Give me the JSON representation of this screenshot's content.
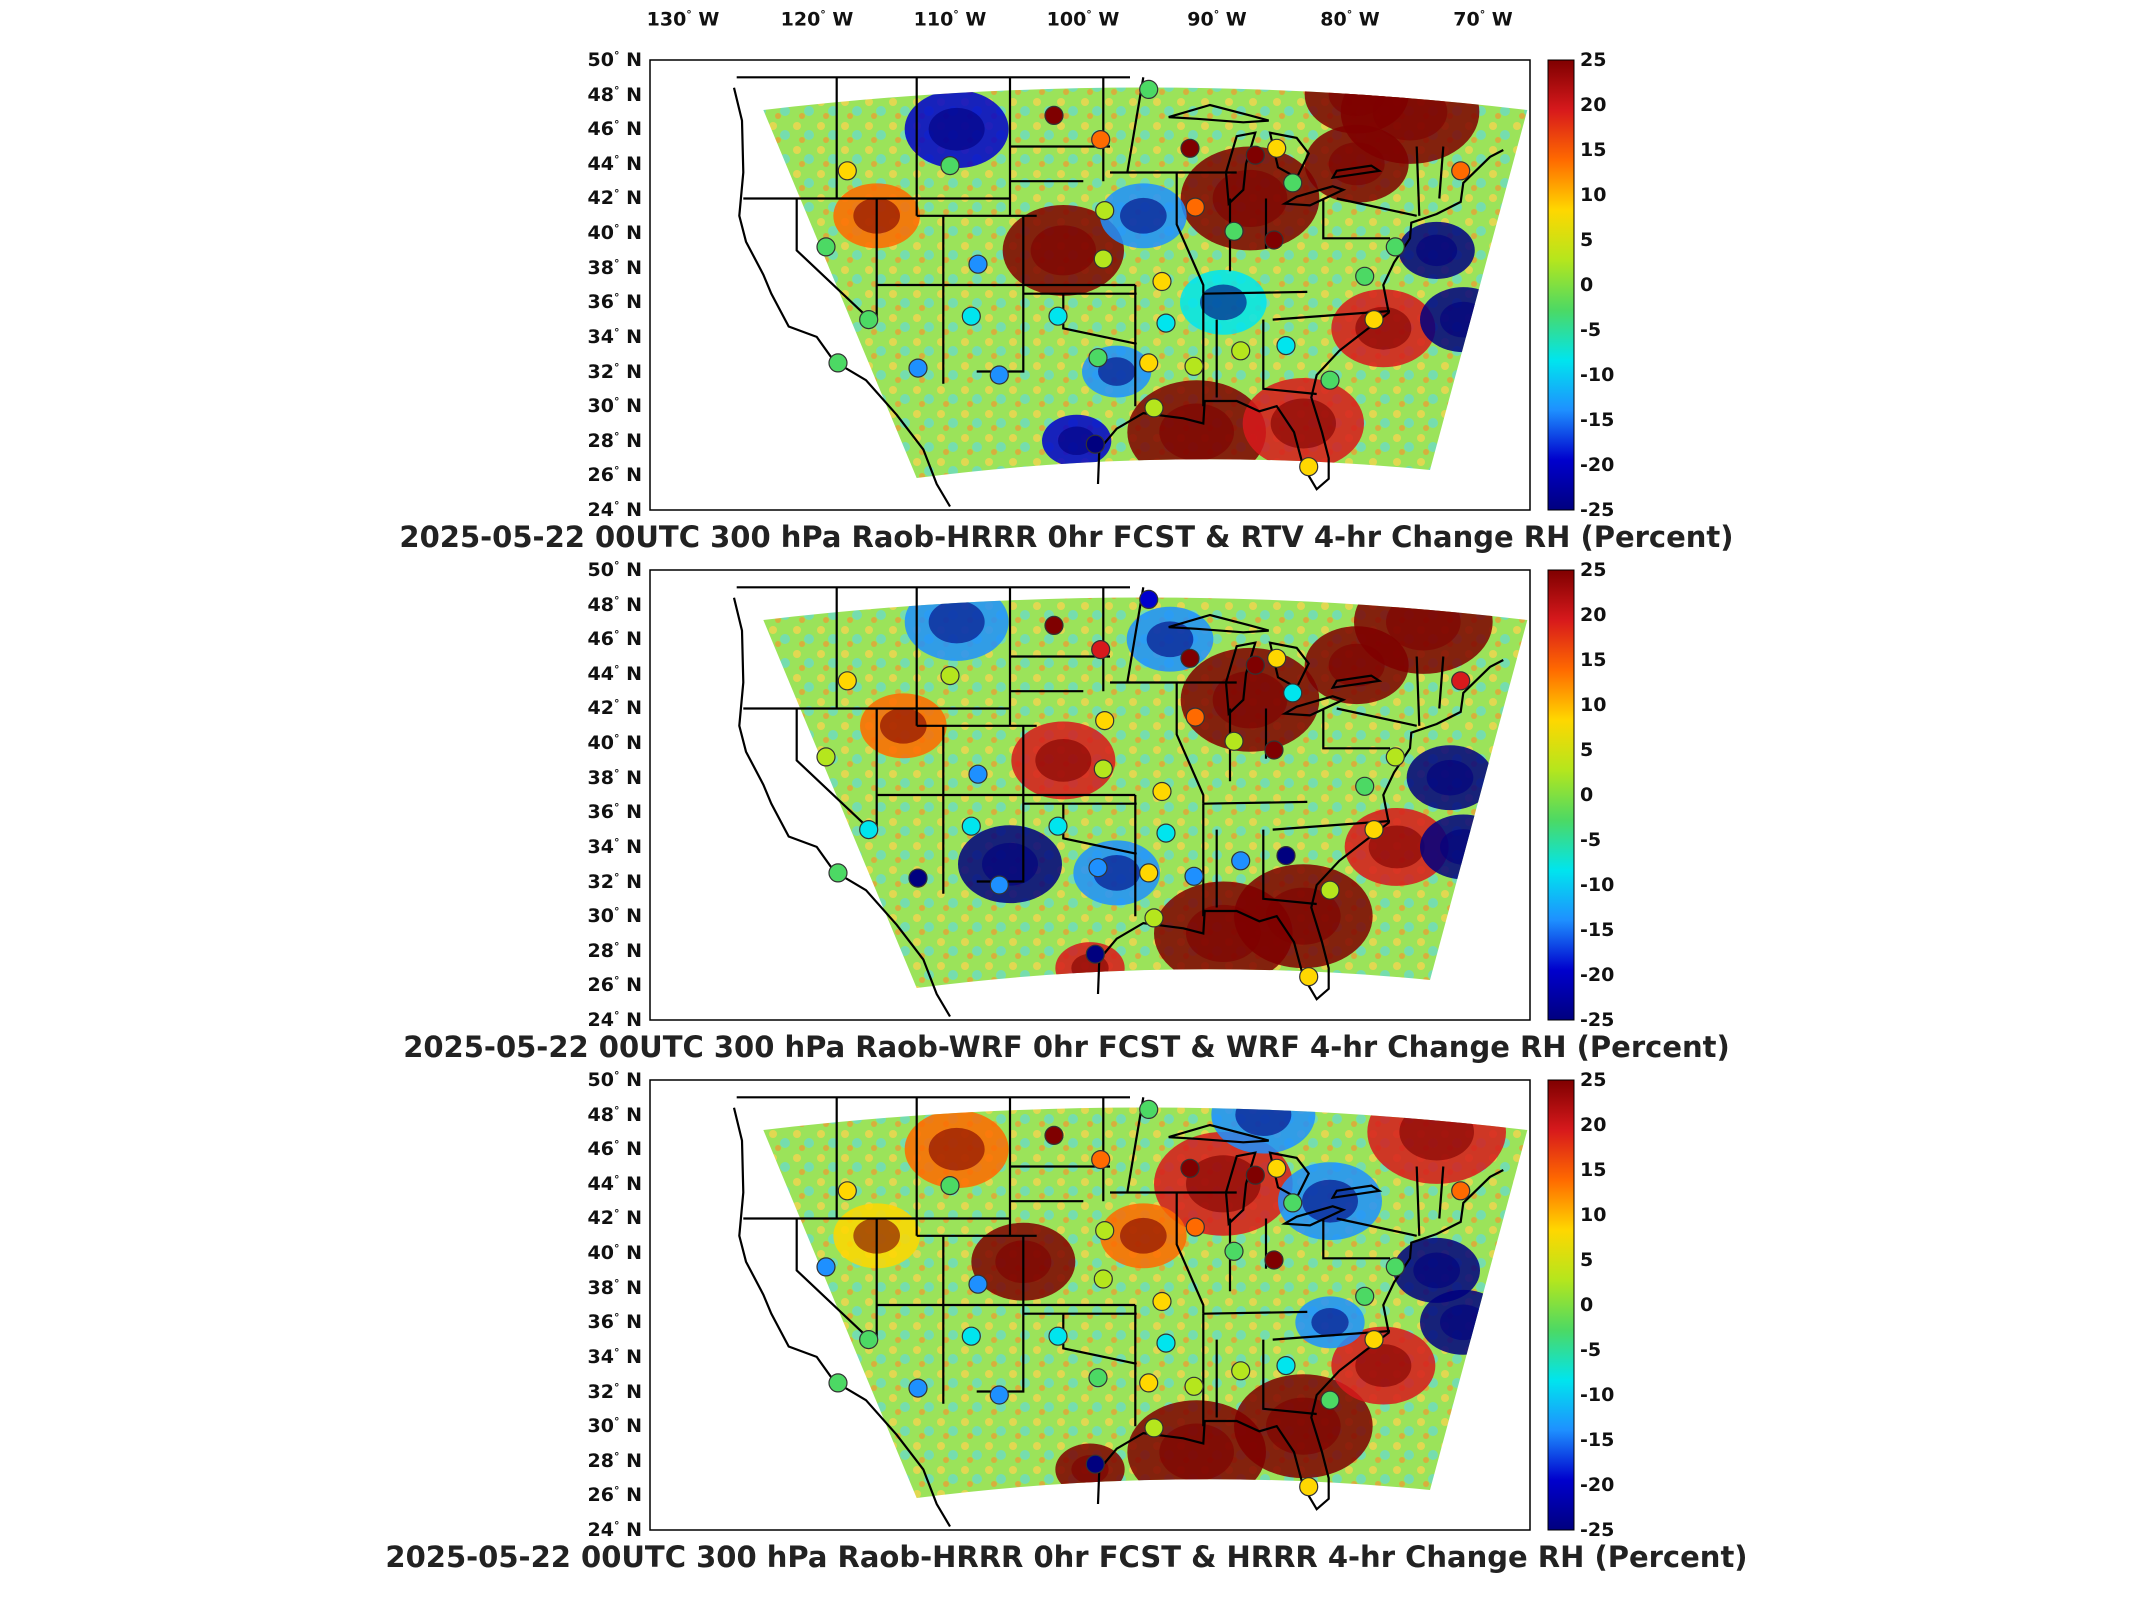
{
  "panels": [
    {
      "title": "2025-05-22 00UTC 300 hPa Raob-HRRR 0hr FCST & RTV 4-hr Change RH (Percent)"
    },
    {
      "title": "2025-05-22 00UTC 300 hPa Raob-WRF 0hr FCST & WRF 4-hr Change RH (Percent)"
    },
    {
      "title": "2025-05-22 00UTC 300 hPa Raob-HRRR 0hr FCST & HRRR 4-hr Change RH (Percent)"
    }
  ],
  "lon_labels": [
    "130",
    "120",
    "110",
    "100",
    "90",
    "80",
    "70"
  ],
  "lon_suffix": "W",
  "lat_labels": [
    "50",
    "48",
    "46",
    "44",
    "42",
    "40",
    "38",
    "36",
    "34",
    "32",
    "30",
    "28",
    "26",
    "24"
  ],
  "lat_suffix": "N",
  "degree_symbol": "°",
  "colorbar_ticks": [
    "25",
    "20",
    "15",
    "10",
    "5",
    "0",
    "-5",
    "-10",
    "-15",
    "-20",
    "-25"
  ],
  "colormap": [
    "#7f0000",
    "#d7191c",
    "#ff6a00",
    "#ffd700",
    "#b5e61d",
    "#4cd964",
    "#00e5ee",
    "#1e90ff",
    "#0000cd",
    "#00007f"
  ],
  "chart_data": [
    {
      "type": "heatmap",
      "title": "2025-05-22 00UTC 300 hPa Raob-HRRR 0hr FCST & RTV 4-hr Change RH (Percent)",
      "xlim": [
        -131,
        -65
      ],
      "ylim": [
        24,
        50
      ],
      "clim": [
        -25,
        25
      ],
      "units": "Percent",
      "raob_points": [
        {
          "lon": -100.7,
          "lat": 46.8,
          "value": 25
        },
        {
          "lon": -97.2,
          "lat": 45.4,
          "value": 15
        },
        {
          "lon": -90.5,
          "lat": 44.9,
          "value": 25
        },
        {
          "lon": -85.6,
          "lat": 44.5,
          "value": 25
        },
        {
          "lon": -84.0,
          "lat": 44.9,
          "value": 6
        },
        {
          "lon": -93.6,
          "lat": 48.3,
          "value": -2
        },
        {
          "lon": -116.2,
          "lat": 43.6,
          "value": 7
        },
        {
          "lon": -108.5,
          "lat": 43.9,
          "value": -3
        },
        {
          "lon": -96.9,
          "lat": 41.3,
          "value": 3
        },
        {
          "lon": -90.1,
          "lat": 41.5,
          "value": 15
        },
        {
          "lon": -87.2,
          "lat": 40.1,
          "value": -2
        },
        {
          "lon": -84.2,
          "lat": 39.6,
          "value": 25
        },
        {
          "lon": -82.8,
          "lat": 42.9,
          "value": -3
        },
        {
          "lon": -75.1,
          "lat": 39.2,
          "value": -4
        },
        {
          "lon": -117.8,
          "lat": 39.2,
          "value": -3
        },
        {
          "lon": -106.4,
          "lat": 38.2,
          "value": -14
        },
        {
          "lon": -97.0,
          "lat": 38.5,
          "value": 4
        },
        {
          "lon": -92.6,
          "lat": 37.2,
          "value": 8
        },
        {
          "lon": -114.6,
          "lat": 35.0,
          "value": -4
        },
        {
          "lon": -106.9,
          "lat": 35.2,
          "value": -8
        },
        {
          "lon": -100.4,
          "lat": 35.2,
          "value": -5
        },
        {
          "lon": -92.3,
          "lat": 34.8,
          "value": -9
        },
        {
          "lon": -86.7,
          "lat": 33.2,
          "value": 5
        },
        {
          "lon": -83.3,
          "lat": 33.5,
          "value": -6
        },
        {
          "lon": -97.4,
          "lat": 32.8,
          "value": -3
        },
        {
          "lon": -93.6,
          "lat": 32.5,
          "value": 10
        },
        {
          "lon": -90.2,
          "lat": 32.3,
          "value": 1
        },
        {
          "lon": -116.9,
          "lat": 32.5,
          "value": -3
        },
        {
          "lon": -110.9,
          "lat": 32.2,
          "value": -13
        },
        {
          "lon": -104.8,
          "lat": 31.8,
          "value": -11
        },
        {
          "lon": -93.2,
          "lat": 29.9,
          "value": 3
        },
        {
          "lon": -97.6,
          "lat": 27.8,
          "value": -22
        },
        {
          "lon": -80.0,
          "lat": 31.5,
          "value": -4
        },
        {
          "lon": -76.7,
          "lat": 35.0,
          "value": 10
        },
        {
          "lon": -81.6,
          "lat": 26.5,
          "value": 8
        },
        {
          "lon": -77.4,
          "lat": 37.5,
          "value": -2
        },
        {
          "lon": -70.2,
          "lat": 43.6,
          "value": 12
        }
      ]
    },
    {
      "type": "heatmap",
      "title": "2025-05-22 00UTC 300 hPa Raob-WRF 0hr FCST & WRF 4-hr Change RH (Percent)",
      "xlim": [
        -131,
        -65
      ],
      "ylim": [
        24,
        50
      ],
      "clim": [
        -25,
        25
      ],
      "units": "Percent",
      "raob_points": [
        {
          "lon": -100.7,
          "lat": 46.8,
          "value": 25
        },
        {
          "lon": -97.2,
          "lat": 45.4,
          "value": 20
        },
        {
          "lon": -90.5,
          "lat": 44.9,
          "value": 25
        },
        {
          "lon": -85.6,
          "lat": 44.5,
          "value": 25
        },
        {
          "lon": -84.0,
          "lat": 44.9,
          "value": 6
        },
        {
          "lon": -93.6,
          "lat": 48.3,
          "value": -18
        },
        {
          "lon": -116.2,
          "lat": 43.6,
          "value": 7
        },
        {
          "lon": -108.5,
          "lat": 43.9,
          "value": 4
        },
        {
          "lon": -96.9,
          "lat": 41.3,
          "value": 6
        },
        {
          "lon": -90.1,
          "lat": 41.5,
          "value": 15
        },
        {
          "lon": -87.2,
          "lat": 40.1,
          "value": 2
        },
        {
          "lon": -84.2,
          "lat": 39.6,
          "value": 25
        },
        {
          "lon": -82.8,
          "lat": 42.9,
          "value": -8
        },
        {
          "lon": -75.1,
          "lat": 39.2,
          "value": 2
        },
        {
          "lon": -117.8,
          "lat": 39.2,
          "value": 1
        },
        {
          "lon": -106.4,
          "lat": 38.2,
          "value": -14
        },
        {
          "lon": -97.0,
          "lat": 38.5,
          "value": 3
        },
        {
          "lon": -92.6,
          "lat": 37.2,
          "value": 8
        },
        {
          "lon": -114.6,
          "lat": 35.0,
          "value": -8
        },
        {
          "lon": -106.9,
          "lat": 35.2,
          "value": -6
        },
        {
          "lon": -100.4,
          "lat": 35.2,
          "value": -8
        },
        {
          "lon": -92.3,
          "lat": 34.8,
          "value": -9
        },
        {
          "lon": -86.7,
          "lat": 33.2,
          "value": -11
        },
        {
          "lon": -83.3,
          "lat": 33.5,
          "value": -20
        },
        {
          "lon": -97.4,
          "lat": 32.8,
          "value": -10
        },
        {
          "lon": -93.6,
          "lat": 32.5,
          "value": 6
        },
        {
          "lon": -90.2,
          "lat": 32.3,
          "value": -12
        },
        {
          "lon": -116.9,
          "lat": 32.5,
          "value": -2
        },
        {
          "lon": -110.9,
          "lat": 32.2,
          "value": -22
        },
        {
          "lon": -104.8,
          "lat": 31.8,
          "value": -14
        },
        {
          "lon": -93.2,
          "lat": 29.9,
          "value": 4
        },
        {
          "lon": -97.6,
          "lat": 27.8,
          "value": -24
        },
        {
          "lon": -80.0,
          "lat": 31.5,
          "value": 2
        },
        {
          "lon": -76.7,
          "lat": 35.0,
          "value": 10
        },
        {
          "lon": -81.6,
          "lat": 26.5,
          "value": 8
        },
        {
          "lon": -77.4,
          "lat": 37.5,
          "value": -2
        },
        {
          "lon": -70.2,
          "lat": 43.6,
          "value": 20
        }
      ]
    },
    {
      "type": "heatmap",
      "title": "2025-05-22 00UTC 300 hPa Raob-HRRR 0hr FCST & HRRR 4-hr Change RH (Percent)",
      "xlim": [
        -131,
        -65
      ],
      "ylim": [
        24,
        50
      ],
      "clim": [
        -25,
        25
      ],
      "units": "Percent",
      "raob_points": [
        {
          "lon": -100.7,
          "lat": 46.8,
          "value": 25
        },
        {
          "lon": -97.2,
          "lat": 45.4,
          "value": 15
        },
        {
          "lon": -90.5,
          "lat": 44.9,
          "value": 25
        },
        {
          "lon": -85.6,
          "lat": 44.5,
          "value": 25
        },
        {
          "lon": -84.0,
          "lat": 44.9,
          "value": 6
        },
        {
          "lon": -93.6,
          "lat": 48.3,
          "value": -2
        },
        {
          "lon": -116.2,
          "lat": 43.6,
          "value": 7
        },
        {
          "lon": -108.5,
          "lat": 43.9,
          "value": -3
        },
        {
          "lon": -96.9,
          "lat": 41.3,
          "value": 3
        },
        {
          "lon": -90.1,
          "lat": 41.5,
          "value": 15
        },
        {
          "lon": -87.2,
          "lat": 40.1,
          "value": -2
        },
        {
          "lon": -84.2,
          "lat": 39.6,
          "value": 25
        },
        {
          "lon": -82.8,
          "lat": 42.9,
          "value": -3
        },
        {
          "lon": -75.1,
          "lat": 39.2,
          "value": -4
        },
        {
          "lon": -117.8,
          "lat": 39.2,
          "value": -10
        },
        {
          "lon": -106.4,
          "lat": 38.2,
          "value": -14
        },
        {
          "lon": -97.0,
          "lat": 38.5,
          "value": 4
        },
        {
          "lon": -92.6,
          "lat": 37.2,
          "value": 8
        },
        {
          "lon": -114.6,
          "lat": 35.0,
          "value": -4
        },
        {
          "lon": -106.9,
          "lat": 35.2,
          "value": -8
        },
        {
          "lon": -100.4,
          "lat": 35.2,
          "value": -5
        },
        {
          "lon": -92.3,
          "lat": 34.8,
          "value": -9
        },
        {
          "lon": -86.7,
          "lat": 33.2,
          "value": 5
        },
        {
          "lon": -83.3,
          "lat": 33.5,
          "value": -6
        },
        {
          "lon": -97.4,
          "lat": 32.8,
          "value": -3
        },
        {
          "lon": -93.6,
          "lat": 32.5,
          "value": 10
        },
        {
          "lon": -90.2,
          "lat": 32.3,
          "value": 1
        },
        {
          "lon": -116.9,
          "lat": 32.5,
          "value": -3
        },
        {
          "lon": -110.9,
          "lat": 32.2,
          "value": -13
        },
        {
          "lon": -104.8,
          "lat": 31.8,
          "value": -11
        },
        {
          "lon": -93.2,
          "lat": 29.9,
          "value": 3
        },
        {
          "lon": -97.6,
          "lat": 27.8,
          "value": -22
        },
        {
          "lon": -80.0,
          "lat": 31.5,
          "value": -4
        },
        {
          "lon": -76.7,
          "lat": 35.0,
          "value": 10
        },
        {
          "lon": -81.6,
          "lat": 26.5,
          "value": 8
        },
        {
          "lon": -77.4,
          "lat": 37.5,
          "value": -2
        },
        {
          "lon": -70.2,
          "lat": 43.6,
          "value": 12
        }
      ]
    }
  ]
}
